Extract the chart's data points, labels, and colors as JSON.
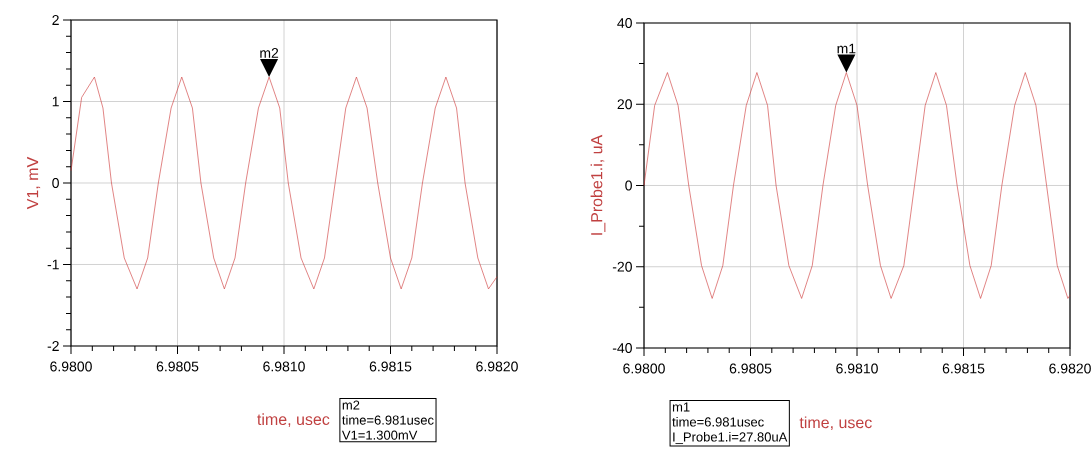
{
  "chart_data": [
    {
      "type": "line",
      "xlabel": "time, usec",
      "ylabel": "V1, mV",
      "x": [
        6.98,
        6.98005,
        6.98011,
        6.98015,
        6.98019,
        6.98025,
        6.98031,
        6.98036,
        6.98041,
        6.98047,
        6.98052,
        6.98057,
        6.98061,
        6.98067,
        6.98072,
        6.98077,
        6.98082,
        6.98088,
        6.98093,
        6.98098,
        6.98102,
        6.98108,
        6.98114,
        6.98119,
        6.98124,
        6.98129,
        6.98134,
        6.98139,
        6.98144,
        6.9815,
        6.98155,
        6.9816,
        6.98165,
        6.98171,
        6.98176,
        6.98181,
        6.98185,
        6.98191,
        6.98196,
        6.982
      ],
      "series": [
        {
          "color": "#cc3333",
          "values": [
            0.15,
            1.05,
            1.3,
            0.92,
            0,
            -0.92,
            -1.3,
            -0.92,
            0,
            0.92,
            1.3,
            0.92,
            0,
            -0.92,
            -1.3,
            -0.92,
            0,
            0.92,
            1.3,
            0.92,
            0,
            -0.92,
            -1.3,
            -0.92,
            0,
            0.92,
            1.3,
            0.92,
            0,
            -0.92,
            -1.3,
            -0.92,
            0,
            0.92,
            1.3,
            0.92,
            0,
            -0.92,
            -1.3,
            -1.15
          ]
        }
      ],
      "xlim": [
        6.98,
        6.982
      ],
      "ylim": [
        -2,
        2
      ],
      "xticks": [
        {
          "value": 6.98,
          "label": "6.9800"
        },
        {
          "value": 6.9801,
          "label": null
        },
        {
          "value": 6.9802,
          "label": null
        },
        {
          "value": 6.9803,
          "label": null
        },
        {
          "value": 6.9804,
          "label": null
        },
        {
          "value": 6.9805,
          "label": "6.9805"
        },
        {
          "value": 6.9806,
          "label": null
        },
        {
          "value": 6.9807,
          "label": null
        },
        {
          "value": 6.9808,
          "label": null
        },
        {
          "value": 6.9809,
          "label": null
        },
        {
          "value": 6.981,
          "label": "6.9810"
        },
        {
          "value": 6.9811,
          "label": null
        },
        {
          "value": 6.9812,
          "label": null
        },
        {
          "value": 6.9813,
          "label": null
        },
        {
          "value": 6.9814,
          "label": null
        },
        {
          "value": 6.9815,
          "label": "6.9815"
        },
        {
          "value": 6.9816,
          "label": null
        },
        {
          "value": 6.9817,
          "label": null
        },
        {
          "value": 6.9818,
          "label": null
        },
        {
          "value": 6.9819,
          "label": null
        },
        {
          "value": 6.982,
          "label": "6.9820"
        }
      ],
      "yticks": [
        -2,
        {
          "value": -1.8,
          "label": null
        },
        {
          "value": -1.6,
          "label": null
        },
        {
          "value": -1.4,
          "label": null
        },
        {
          "value": -1.2,
          "label": null
        },
        -1,
        {
          "value": -0.8,
          "label": null
        },
        {
          "value": -0.6,
          "label": null
        },
        {
          "value": -0.4,
          "label": null
        },
        {
          "value": -0.2,
          "label": null
        },
        0,
        {
          "value": 0.2,
          "label": null
        },
        {
          "value": 0.4,
          "label": null
        },
        {
          "value": 0.6,
          "label": null
        },
        {
          "value": 0.8,
          "label": null
        },
        1,
        {
          "value": 1.2,
          "label": null
        },
        {
          "value": 1.4,
          "label": null
        },
        {
          "value": 1.6,
          "label": null
        },
        {
          "value": 1.8,
          "label": null
        },
        2
      ],
      "grid": true,
      "annotations": [
        {
          "text": "m2",
          "x": 6.98093,
          "y": 1.3
        },
        "m2",
        "time=6.981usec",
        "V1=1.300mV"
      ]
    },
    {
      "type": "line",
      "xlabel": "time, usec",
      "ylabel": "I_Probe1.i, uA",
      "x": [
        6.98,
        6.98005,
        6.98011,
        6.98016,
        6.98021,
        6.98027,
        6.98032,
        6.98037,
        6.98042,
        6.98048,
        6.98053,
        6.98058,
        6.98062,
        6.98068,
        6.98074,
        6.98079,
        6.98084,
        6.9809,
        6.98095,
        6.981,
        6.98105,
        6.98111,
        6.98116,
        6.98122,
        6.98127,
        6.98132,
        6.98137,
        6.98142,
        6.98147,
        6.98153,
        6.98158,
        6.98163,
        6.98168,
        6.98174,
        6.98179,
        6.98184,
        6.98189,
        6.98194,
        6.98199,
        6.982
      ],
      "series": [
        {
          "color": "#cc3333",
          "values": [
            0,
            19.7,
            27.8,
            19.7,
            0,
            -19.7,
            -27.8,
            -19.7,
            0,
            19.7,
            27.8,
            19.7,
            0,
            -19.7,
            -27.8,
            -19.7,
            0,
            19.7,
            27.8,
            19.7,
            0,
            -19.7,
            -27.8,
            -19.7,
            0,
            19.7,
            27.8,
            19.7,
            0,
            -19.7,
            -27.8,
            -19.7,
            0,
            19.7,
            27.8,
            19.7,
            0,
            -19.7,
            -27.8,
            -27
          ]
        }
      ],
      "xlim": [
        6.98,
        6.982
      ],
      "ylim": [
        -40,
        40
      ],
      "xticks": [
        {
          "value": 6.98,
          "label": "6.9800"
        },
        {
          "value": 6.9801,
          "label": null
        },
        {
          "value": 6.9802,
          "label": null
        },
        {
          "value": 6.9803,
          "label": null
        },
        {
          "value": 6.9804,
          "label": null
        },
        {
          "value": 6.9805,
          "label": "6.9805"
        },
        {
          "value": 6.9806,
          "label": null
        },
        {
          "value": 6.9807,
          "label": null
        },
        {
          "value": 6.9808,
          "label": null
        },
        {
          "value": 6.9809,
          "label": null
        },
        {
          "value": 6.981,
          "label": "6.9810"
        },
        {
          "value": 6.9811,
          "label": null
        },
        {
          "value": 6.9812,
          "label": null
        },
        {
          "value": 6.9813,
          "label": null
        },
        {
          "value": 6.9814,
          "label": null
        },
        {
          "value": 6.9815,
          "label": "6.9815"
        },
        {
          "value": 6.9816,
          "label": null
        },
        {
          "value": 6.9817,
          "label": null
        },
        {
          "value": 6.9818,
          "label": null
        },
        {
          "value": 6.9819,
          "label": null
        },
        {
          "value": 6.982,
          "label": "6.9820"
        }
      ],
      "yticks": [
        -40,
        {
          "value": -30,
          "label": null
        },
        -20,
        {
          "value": -10,
          "label": null
        },
        0,
        {
          "value": 10,
          "label": null
        },
        20,
        {
          "value": 30,
          "label": null
        },
        40
      ],
      "grid": true,
      "annotations": [
        {
          "text": "m1",
          "x": 6.98095,
          "y": 27.8
        },
        "m1",
        "time=6.981usec",
        "I_Probe1.i=27.80uA"
      ]
    }
  ]
}
